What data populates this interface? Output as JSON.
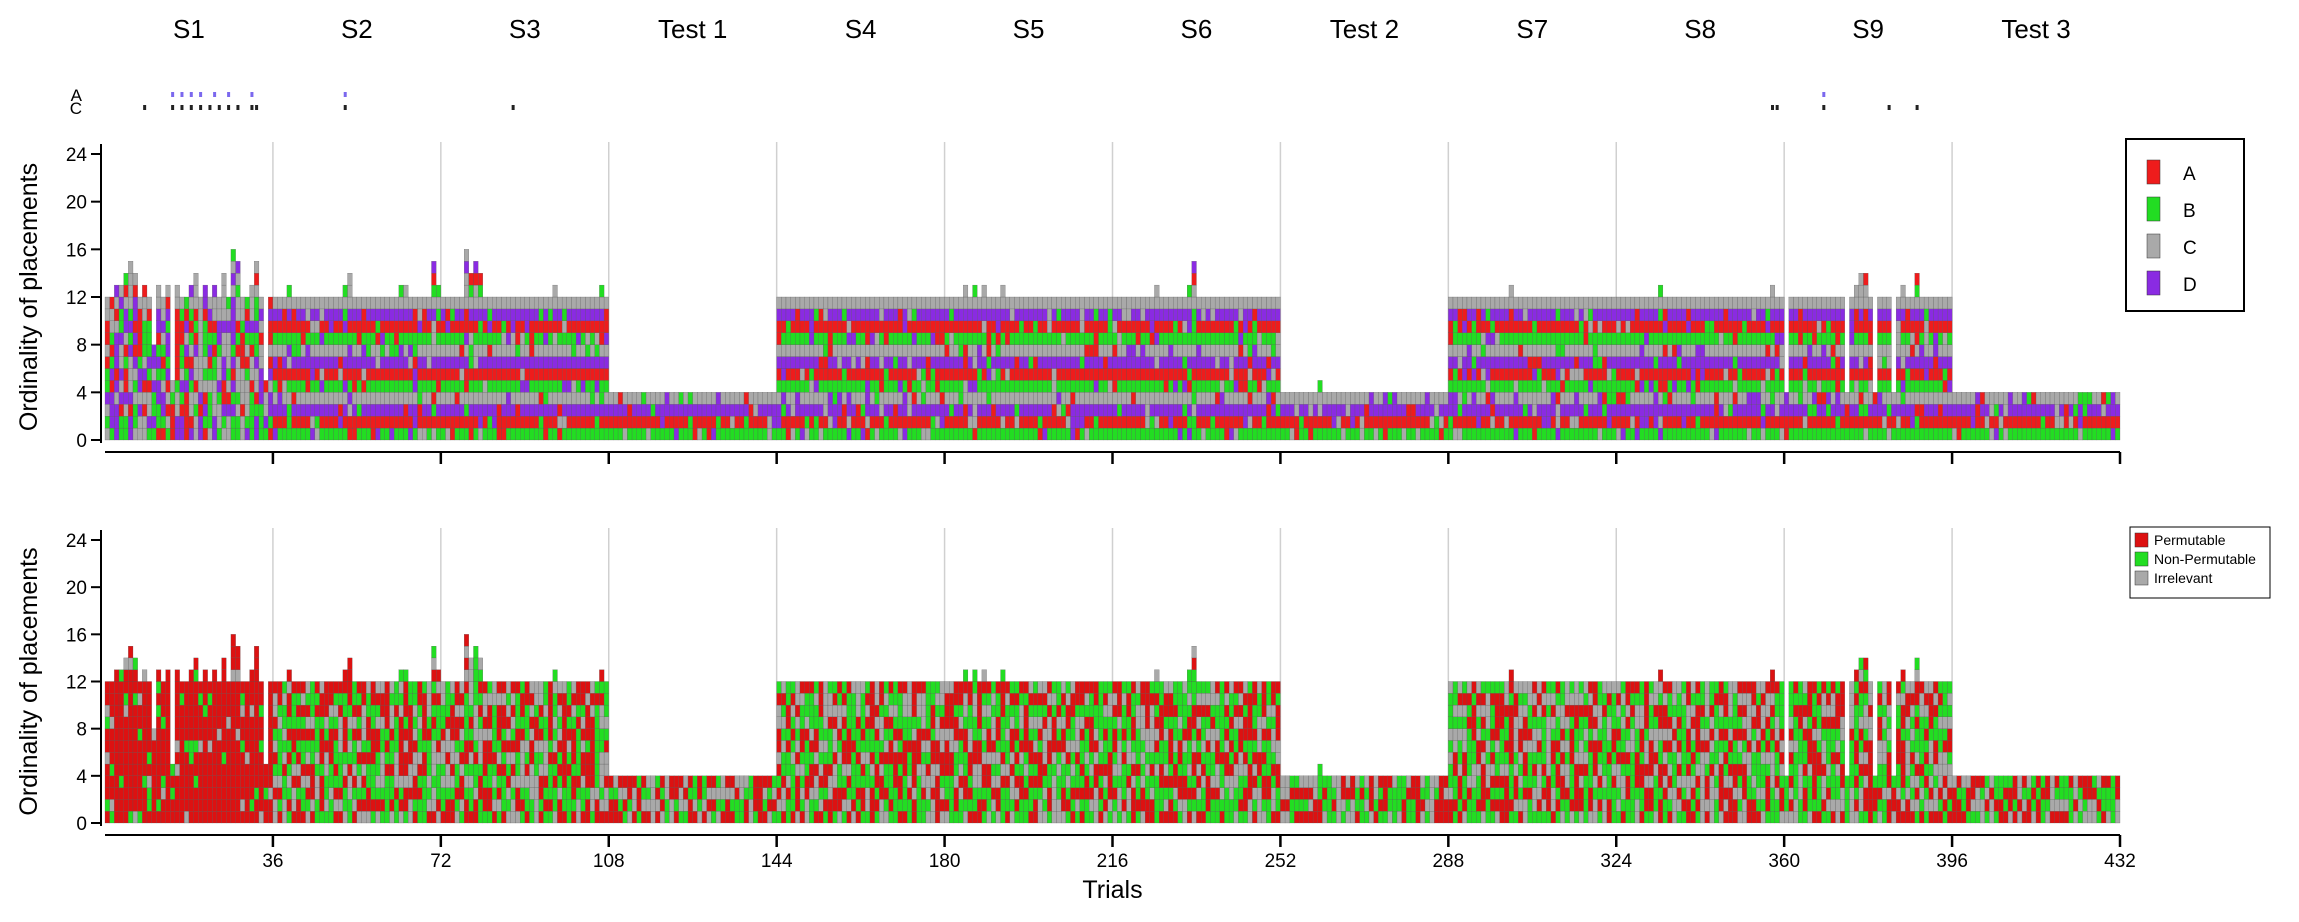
{
  "chart_data": [
    {
      "type": "bar",
      "subtype": "stacked-placement-matrix",
      "panel": "top",
      "ylabel": "Ordinality of placements",
      "xlabel": "",
      "ylim": [
        0,
        24
      ],
      "yticks": [
        0,
        4,
        8,
        12,
        16,
        20,
        24
      ],
      "xlim": [
        0,
        432
      ],
      "xticks": [
        36,
        72,
        108,
        144,
        180,
        216,
        252,
        288,
        324,
        360,
        396,
        432
      ],
      "x_tick_labels_shown": false,
      "session_bounds": [
        0,
        36,
        72,
        108,
        144,
        180,
        216,
        252,
        288,
        324,
        360,
        396,
        432
      ],
      "session_labels": [
        "S1",
        "S2",
        "S3",
        "Test 1",
        "S4",
        "S5",
        "S6",
        "Test 2",
        "S7",
        "S8",
        "S9",
        "Test 3"
      ],
      "legend": {
        "placement": "top-right",
        "items": [
          {
            "name": "A",
            "color": "#ee1c1c"
          },
          {
            "name": "B",
            "color": "#22dd22"
          },
          {
            "name": "C",
            "color": "#a9a9a9"
          },
          {
            "name": "D",
            "color": "#8a2be2"
          }
        ]
      },
      "stack_heights_by_session": [
        {
          "trials": "1-36",
          "typical": 12,
          "range": [
            4,
            16
          ]
        },
        {
          "trials": "37-108",
          "typical": 12,
          "range": [
            11,
            16
          ]
        },
        {
          "trials": "109-144",
          "typical": 4,
          "range": [
            4,
            4
          ]
        },
        {
          "trials": "145-252",
          "typical": 12,
          "range": [
            12,
            15
          ]
        },
        {
          "trials": "253-288",
          "typical": 4,
          "range": [
            4,
            5
          ]
        },
        {
          "trials": "289-396",
          "typical": 12,
          "range": [
            4,
            14
          ]
        },
        {
          "trials": "397-432",
          "typical": 4,
          "range": [
            4,
            4
          ]
        }
      ],
      "marker_rows": [
        {
          "name": "A",
          "color": "#7b68ee",
          "trials": [
            15,
            17,
            19,
            21,
            24,
            27,
            32,
            52,
            369
          ]
        },
        {
          "name": "C",
          "color": "#222222",
          "trials": [
            9,
            15,
            17,
            19,
            21,
            23,
            25,
            27,
            29,
            32,
            33,
            52,
            88,
            358,
            359,
            369,
            383,
            389
          ]
        }
      ]
    },
    {
      "type": "bar",
      "subtype": "stacked-placement-matrix",
      "panel": "bottom",
      "ylabel": "Ordinality of placements",
      "xlabel": "Trials",
      "ylim": [
        0,
        24
      ],
      "yticks": [
        0,
        4,
        8,
        12,
        16,
        20,
        24
      ],
      "xlim": [
        0,
        432
      ],
      "xticks": [
        36,
        72,
        108,
        144,
        180,
        216,
        252,
        288,
        324,
        360,
        396,
        432
      ],
      "x_tick_labels": [
        "36",
        "72",
        "108",
        "144",
        "180",
        "216",
        "252",
        "288",
        "324",
        "360",
        "396",
        "432"
      ],
      "legend": {
        "placement": "top-right",
        "items": [
          {
            "name": "Permutable",
            "color": "#dd1111"
          },
          {
            "name": "Non-Permutable",
            "color": "#22dd22"
          },
          {
            "name": "Irrelevant",
            "color": "#a9a9a9"
          }
        ]
      },
      "composition_by_session": [
        {
          "trials": "1-36",
          "dominant": "Permutable"
        },
        {
          "trials": "37-108",
          "mix": [
            "Permutable",
            "Non-Permutable",
            "Irrelevant"
          ]
        },
        {
          "trials": "109-144",
          "mix": [
            "Permutable",
            "Non-Permutable",
            "Irrelevant"
          ]
        },
        {
          "trials": "145-252",
          "mix": [
            "Permutable",
            "Non-Permutable",
            "Irrelevant"
          ]
        },
        {
          "trials": "253-288",
          "mix": [
            "Permutable",
            "Non-Permutable",
            "Irrelevant"
          ]
        },
        {
          "trials": "289-396",
          "mix": [
            "Permutable",
            "Non-Permutable",
            "Irrelevant"
          ]
        },
        {
          "trials": "397-432",
          "mix": [
            "Permutable",
            "Non-Permutable",
            "Irrelevant"
          ]
        }
      ]
    }
  ]
}
